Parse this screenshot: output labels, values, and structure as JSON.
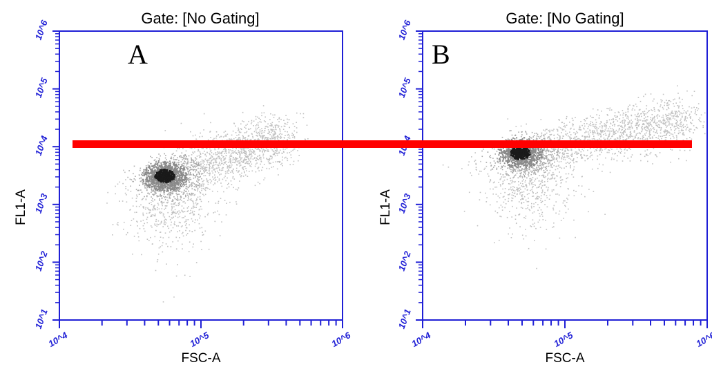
{
  "chart_data": {
    "type": "scatter",
    "reference_line": {
      "color": "#ff0000",
      "y": 11000
    },
    "colors": {
      "axis": "#1f1fd6",
      "density_low": "#c0c0c0",
      "density_mid": "#8a8a8a",
      "density_high": "#1a1a1a"
    },
    "panels": [
      {
        "label": "A",
        "title": "Gate: [No Gating]",
        "xlabel": "FSC-A",
        "ylabel": "FL1-A",
        "x_scale": "log",
        "y_scale": "log",
        "xlim": [
          10000,
          1000000
        ],
        "ylim": [
          10,
          1000000
        ],
        "x_ticks": [
          "10^4",
          "10^5",
          "10^6"
        ],
        "y_ticks": [
          "10^1",
          "10^2",
          "10^3",
          "10^4",
          "10^5",
          "10^6"
        ],
        "population": {
          "center_x": 55000,
          "center_y": 3200,
          "tail_end_x": 400000,
          "tail_end_y": 15000
        }
      },
      {
        "label": "B",
        "title": "Gate: [No Gating]",
        "xlabel": "FSC-A",
        "ylabel": "FL1-A",
        "x_scale": "log",
        "y_scale": "log",
        "xlim": [
          10000,
          1000000
        ],
        "ylim": [
          10,
          1000000
        ],
        "x_ticks": [
          "10^4",
          "10^5",
          "10^6"
        ],
        "y_ticks": [
          "10^1",
          "10^2",
          "10^3",
          "10^4",
          "10^5",
          "10^6"
        ],
        "population": {
          "center_x": 48000,
          "center_y": 8000,
          "tail_end_x": 700000,
          "tail_end_y": 30000
        }
      }
    ]
  }
}
